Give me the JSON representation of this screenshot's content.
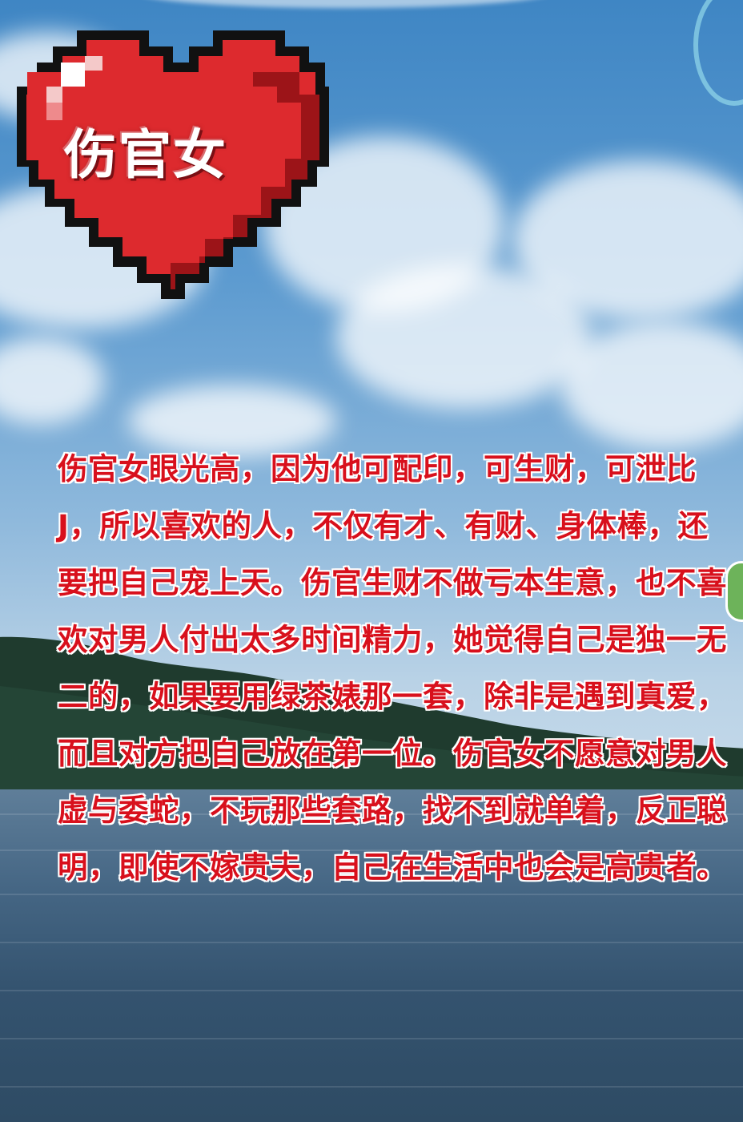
{
  "heart_badge": {
    "label": "伤官女"
  },
  "article": {
    "body": "伤官女眼光高，因为他可配印，可生财，可泄比J，所以喜欢的人，不仅有才、有财、身体棒，还要把自己宠上天。伤官生财不做亏本生意，也不喜欢对男人付出太多时间精力，她觉得自己是独一无二的，如果要用绿茶婊那一套，除非是遇到真爱，而且对方把自己放在第一位。伤官女不愿意对男人虚与委蛇，不玩那些套路，找不到就单着，反正聪明，即使不嫁贵夫，自己在生活中也会是高贵者。"
  },
  "colors": {
    "heart_red": "#dd2a2e",
    "heart_dark": "#9c1418",
    "text_red": "#d8101c"
  }
}
